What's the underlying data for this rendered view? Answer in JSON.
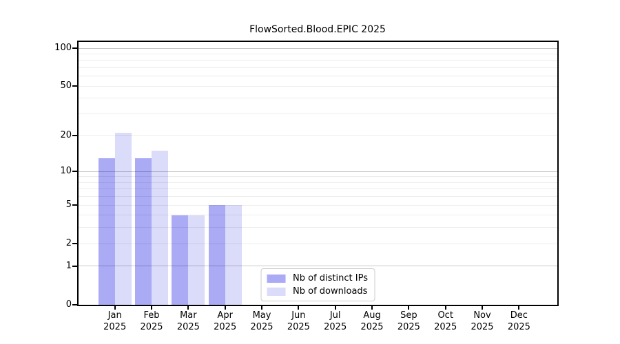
{
  "chart_data": {
    "type": "bar",
    "title": "FlowSorted.Blood.EPIC 2025",
    "categories": [
      "Jan",
      "Feb",
      "Mar",
      "Apr",
      "May",
      "Jun",
      "Jul",
      "Aug",
      "Sep",
      "Oct",
      "Nov",
      "Dec"
    ],
    "category_year": "2025",
    "series": [
      {
        "name": "Nb of distinct IPs",
        "color": "#aaaaf5",
        "values": [
          13,
          13,
          4,
          5,
          0,
          0,
          0,
          0,
          0,
          0,
          0,
          0
        ]
      },
      {
        "name": "Nb of downloads",
        "color": "#dbdbfa",
        "values": [
          21,
          15,
          4,
          5,
          0,
          0,
          0,
          0,
          0,
          0,
          0,
          0
        ]
      }
    ],
    "y_axis": {
      "scale": "log1p",
      "tick_values": [
        0,
        1,
        2,
        5,
        10,
        20,
        50,
        100
      ],
      "major_gridlines": [
        1,
        10,
        100
      ],
      "minor_gridlines": [
        2,
        3,
        4,
        5,
        6,
        7,
        8,
        9,
        20,
        30,
        40,
        50,
        60,
        70,
        80,
        90
      ],
      "range": [
        0,
        112
      ]
    },
    "legend": {
      "position": "lower center",
      "entries": [
        "Nb of distinct IPs",
        "Nb of downloads"
      ]
    },
    "grid": "horizontal"
  },
  "colors": {
    "bar_distinct_ips": "#aaaaf5",
    "bar_downloads": "#dbdbfa",
    "axis_spine": "#000000",
    "minor_gridline": "rgba(0,0,0,0.075)",
    "major_gridline": "rgba(0,0,0,0.22)",
    "legend_border": "#cccccc",
    "text": "#000000",
    "background": "#ffffff"
  }
}
